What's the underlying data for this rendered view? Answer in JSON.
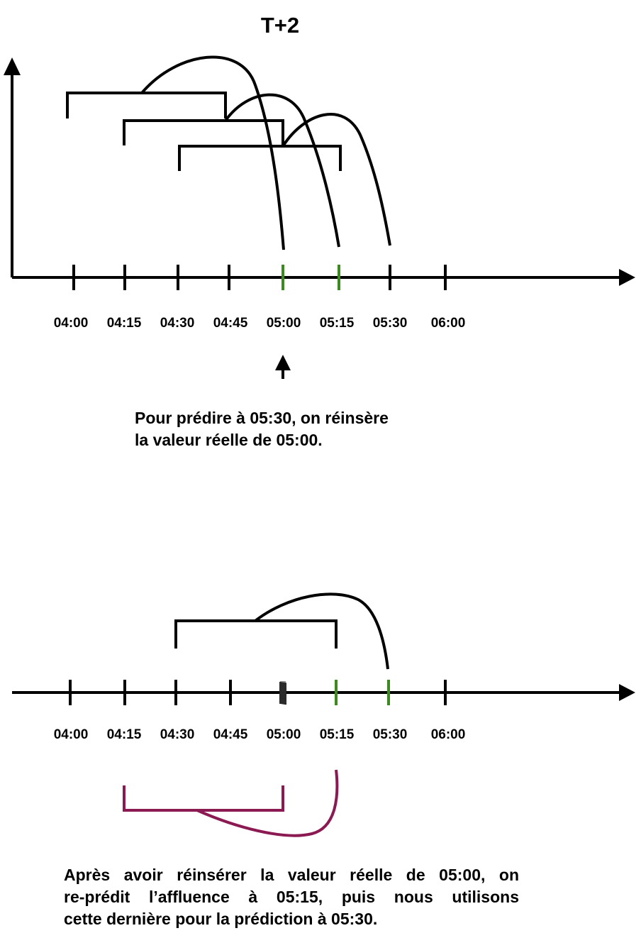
{
  "title": "T+2",
  "colors": {
    "default": "#000000",
    "real_value": "#3a8a1f",
    "reprediction": "#8b1a52"
  },
  "diagrams": [
    {
      "id": "top",
      "tick_labels": [
        "04:00",
        "04:15",
        "04:30",
        "04:45",
        "05:00",
        "05:15",
        "05:30",
        "06:00"
      ],
      "highlighted_ticks": [
        "05:00",
        "05:15"
      ],
      "windows": [
        {
          "from": "04:00",
          "to": "04:45",
          "predicts": "05:00"
        },
        {
          "from": "04:15",
          "to": "05:00",
          "predicts": "05:15"
        },
        {
          "from": "04:30",
          "to": "05:15",
          "predicts": "05:30"
        }
      ],
      "pointer_at": "05:00",
      "caption_lines": [
        "Pour prédire à 05:30, on réinsère",
        "la valeur réelle de 05:00."
      ]
    },
    {
      "id": "bottom",
      "tick_labels": [
        "04:00",
        "04:15",
        "04:30",
        "04:45",
        "05:00",
        "05:15",
        "05:30",
        "06:00"
      ],
      "highlighted_ticks": [
        "05:15",
        "05:30"
      ],
      "erased_tick": "05:00",
      "windows": [
        {
          "from": "04:30",
          "to": "05:15",
          "predicts": "05:30"
        }
      ],
      "reprediction": {
        "from": "04:15",
        "to": "05:00",
        "predicts": "05:15"
      },
      "caption_lines": [
        "Après avoir réinsérer la valeur réelle de 05:00, on",
        "re-prédit l’affluence à 05:15, puis nous utilisons",
        "cette dernière pour la prédiction à 05:30."
      ]
    }
  ]
}
